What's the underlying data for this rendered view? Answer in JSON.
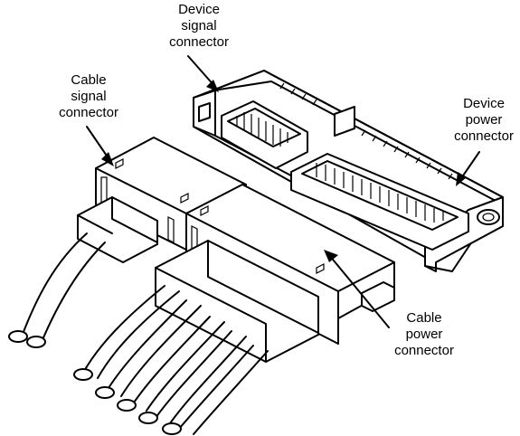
{
  "labels": {
    "device_signal": [
      "Device",
      "signal",
      "connector"
    ],
    "device_power": [
      "Device",
      "power",
      "connector"
    ],
    "cable_signal": [
      "Cable",
      "signal",
      "connector"
    ],
    "cable_power": [
      "Cable",
      "power",
      "connector"
    ]
  }
}
